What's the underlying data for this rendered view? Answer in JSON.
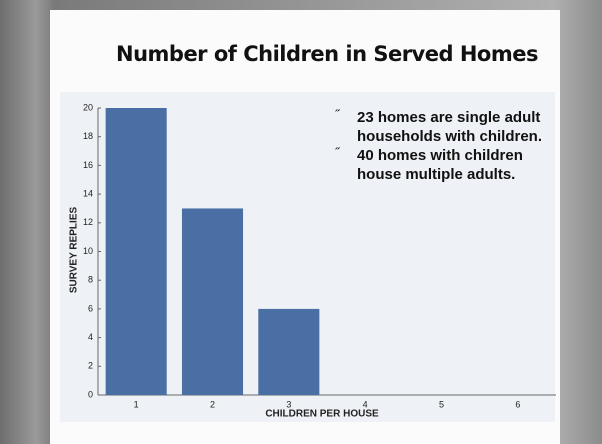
{
  "chart_data": {
    "type": "bar",
    "title": "Number of Children in Served Homes",
    "xlabel": "CHILDREN PER HOUSE",
    "ylabel": "SURVEY REPLIES",
    "categories": [
      "1",
      "2",
      "3",
      "4",
      "5",
      "6"
    ],
    "values": [
      20,
      13,
      6,
      0,
      0,
      0
    ],
    "color": "#4a6fa5",
    "ylim": [
      0,
      20
    ],
    "yticks": [
      0,
      2,
      4,
      6,
      8,
      10,
      12,
      14,
      16,
      18,
      20
    ],
    "annotations": [
      {
        "bullet": "˝",
        "text": "23 homes are single adult households with children."
      },
      {
        "bullet": "˝",
        "text": "40 homes with children house multiple adults."
      }
    ]
  }
}
